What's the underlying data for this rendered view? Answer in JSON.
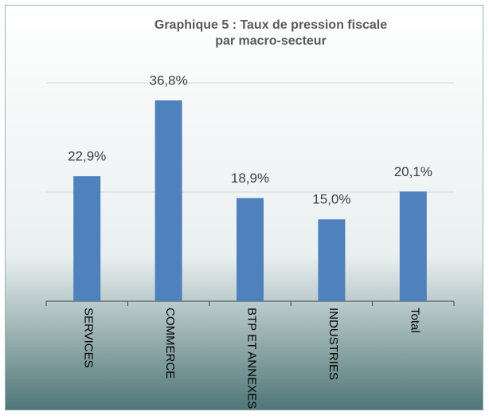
{
  "chart_data": {
    "type": "bar",
    "title": "Graphique 5 : Taux de pression fiscale par macro-secteur",
    "categories": [
      "SERVICES",
      "COMMERCE",
      "BTP ET ANNEXES",
      "INDUSTRIES",
      "Total"
    ],
    "values": [
      22.9,
      36.8,
      18.9,
      15.0,
      20.1
    ],
    "value_labels": [
      "22,9%",
      "36,8%",
      "18,9%",
      "15,0%",
      "20,1%"
    ],
    "color": "#4f81bd",
    "ylim": [
      0,
      40
    ],
    "yticks": [
      0,
      20,
      40
    ],
    "grid": true
  }
}
